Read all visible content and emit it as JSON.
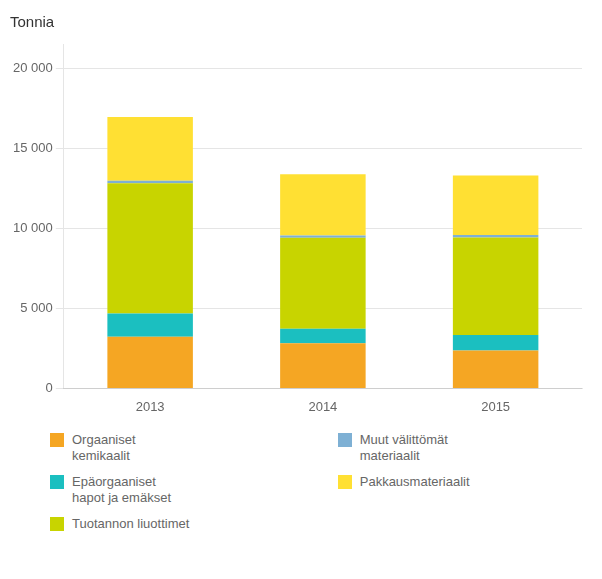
{
  "chart_data": {
    "type": "bar",
    "stacked": true,
    "ylabel": "Tonnia",
    "categories": [
      "2013",
      "2014",
      "2015"
    ],
    "series": [
      {
        "name": "Orgaaniset\nkemikaalit",
        "color": "#F5A623",
        "values": [
          3230,
          2822,
          2367
        ]
      },
      {
        "name": "Epäorgaaniset\nhapot ja emäkset",
        "color": "#1BBFC0",
        "values": [
          1450,
          900,
          970
        ]
      },
      {
        "name": "Tuotannon liuottimet",
        "color": "#C8D400",
        "values": [
          8120,
          5680,
          6080
        ]
      },
      {
        "name": "Muut välittömät\nmateriaalit",
        "color": "#7EB0D4",
        "values": [
          160,
          150,
          160
        ]
      },
      {
        "name": "Pakkausmateriaalit",
        "color": "#FFE033",
        "values": [
          3990,
          3820,
          3720
        ]
      }
    ],
    "ylim": [
      0,
      21500
    ],
    "yticks": [
      0,
      {
        "value": 5000,
        "label": "5 000"
      },
      {
        "value": 10000,
        "label": "10 000"
      },
      {
        "value": 15000,
        "label": "15 000"
      },
      {
        "value": 20000,
        "label": "20 000"
      }
    ],
    "grid": true,
    "legend": "bottom"
  }
}
